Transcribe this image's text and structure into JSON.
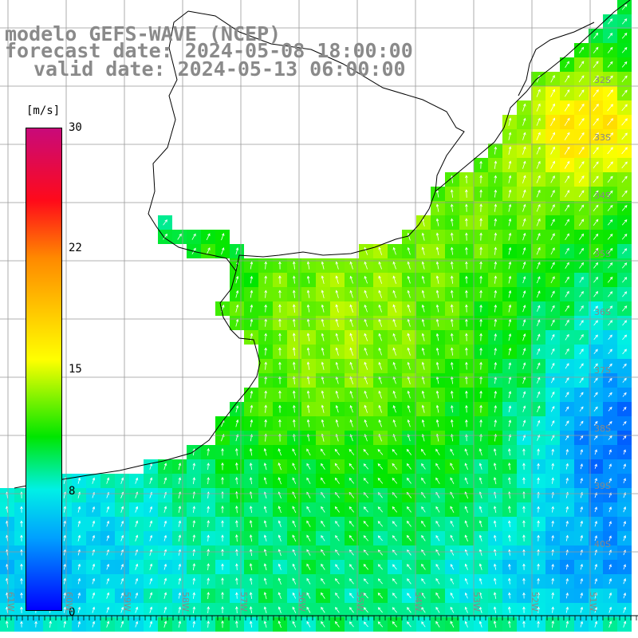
{
  "title": {
    "line1": "modelo GEFS-WAVE (NCEP)",
    "line2": "forecast date: 2024-05-08 18:00:00",
    "line3": "valid date: 2024-05-13 06:00:00"
  },
  "colorbar": {
    "unit": "[m/s]",
    "ticks": [
      "30",
      "22",
      "15",
      "8",
      "0"
    ],
    "tick_values": [
      30,
      22,
      15,
      8,
      0
    ],
    "min": 0,
    "max": 30,
    "colors": [
      "#0000ff",
      "#00a0ff",
      "#00f0e6",
      "#00e600",
      "#ffff00",
      "#ff8a00",
      "#ff0a1a",
      "#c80a7a"
    ]
  },
  "lat_labels": [
    "32S",
    "33S",
    "34S",
    "35S",
    "36S",
    "37S",
    "38S",
    "39S",
    "40S"
  ],
  "lon_labels": [
    "61W",
    "60W",
    "59W",
    "58W",
    "57W",
    "56W",
    "55W",
    "54W",
    "53W",
    "52W",
    "51W"
  ],
  "map": {
    "variable": "wind speed",
    "units": "m/s",
    "land_color": "#ffffff",
    "grid_color": "#999999",
    "coast_color": "#000000"
  }
}
